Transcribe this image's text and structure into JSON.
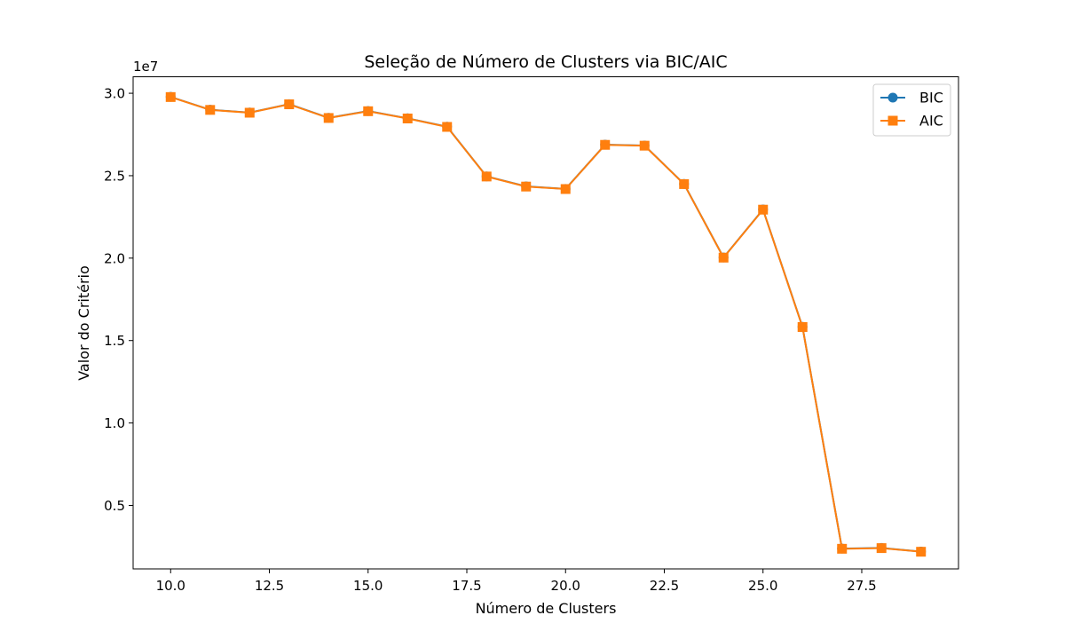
{
  "chart_data": {
    "type": "line",
    "title": "Seleção de Número de Clusters via BIC/AIC",
    "xlabel": "Número de Clusters",
    "ylabel": "Valor do Critério",
    "y_offset_label": "1e7",
    "y_scale": 10000000,
    "xlim": [
      9.05,
      29.95
    ],
    "ylim": [
      1150000,
      31000000
    ],
    "x_ticks": [
      10,
      12.5,
      15,
      17.5,
      20,
      22.5,
      25,
      27.5
    ],
    "x_tick_labels": [
      "10.0",
      "12.5",
      "15.0",
      "17.5",
      "20.0",
      "22.5",
      "25.0",
      "27.5"
    ],
    "y_ticks": [
      5000000,
      10000000,
      15000000,
      20000000,
      25000000,
      30000000
    ],
    "y_tick_labels": [
      "0.5",
      "1.0",
      "1.5",
      "2.0",
      "2.5",
      "3.0"
    ],
    "grid": false,
    "legend_position": "top-right",
    "x": [
      10,
      11,
      12,
      13,
      14,
      15,
      16,
      17,
      18,
      19,
      20,
      21,
      22,
      23,
      24,
      25,
      26,
      27,
      28,
      29
    ],
    "series": [
      {
        "name": "BIC",
        "color": "#1f77b4",
        "marker": "circle",
        "values": [
          29780000,
          29000000,
          28830000,
          29340000,
          28510000,
          28920000,
          28480000,
          27970000,
          24960000,
          24350000,
          24200000,
          26880000,
          26830000,
          24500000,
          20040000,
          22950000,
          15830000,
          2380000,
          2420000,
          2200000
        ]
      },
      {
        "name": "AIC",
        "color": "#ff7f0e",
        "marker": "square",
        "values": [
          29770000,
          28990000,
          28820000,
          29330000,
          28500000,
          28910000,
          28470000,
          27960000,
          24950000,
          24340000,
          24190000,
          26870000,
          26820000,
          24490000,
          20030000,
          22940000,
          15820000,
          2370000,
          2410000,
          2190000
        ]
      }
    ]
  }
}
